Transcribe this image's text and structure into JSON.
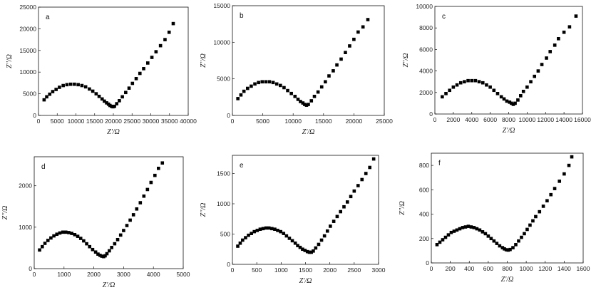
{
  "chart_data": [
    {
      "type": "scatter",
      "label": "a",
      "xlabel": "Z'/Ω",
      "ylabel": "Z''/Ω",
      "xlim": [
        0,
        40000
      ],
      "ylim": [
        0,
        25000
      ],
      "xticks": [
        0,
        5000,
        10000,
        15000,
        20000,
        25000,
        30000,
        35000,
        40000
      ],
      "yticks": [
        0,
        5000,
        10000,
        15000,
        20000,
        25000
      ],
      "series": [
        {
          "x": [
            1500,
            2200,
            3000,
            3800,
            4700,
            5600,
            6600,
            7600,
            8600,
            9600,
            10600,
            11600,
            12600,
            13600,
            14500,
            15400,
            16200,
            17000,
            17600,
            18200,
            18700,
            19100,
            19500,
            19900,
            20300,
            20900,
            21600,
            22400,
            23300,
            24200,
            25100,
            26100,
            27100,
            28100,
            29200,
            30300,
            31400,
            32600,
            33800,
            34900,
            36000
          ],
          "y": [
            3600,
            4300,
            4900,
            5500,
            6000,
            6500,
            6900,
            7100,
            7200,
            7200,
            7100,
            6900,
            6600,
            6100,
            5600,
            5000,
            4400,
            3800,
            3300,
            2900,
            2600,
            2300,
            2100,
            2000,
            2100,
            2700,
            3400,
            4300,
            5300,
            6300,
            7400,
            8500,
            9700,
            10800,
            12100,
            13400,
            14700,
            16100,
            17500,
            19200,
            21200
          ]
        }
      ]
    },
    {
      "type": "scatter",
      "label": "b",
      "xlabel": "Z'/Ω",
      "ylabel": "Z''/Ω",
      "xlim": [
        0,
        25000
      ],
      "ylim": [
        0,
        15000
      ],
      "xticks": [
        0,
        5000,
        10000,
        15000,
        20000,
        25000
      ],
      "yticks": [
        0,
        5000,
        10000,
        15000
      ],
      "series": [
        {
          "x": [
            900,
            1400,
            1900,
            2500,
            3100,
            3700,
            4300,
            4900,
            5500,
            6100,
            6700,
            7300,
            7900,
            8500,
            9100,
            9700,
            10300,
            10800,
            11200,
            11600,
            11900,
            12200,
            12500,
            13000,
            13500,
            14100,
            14700,
            15300,
            15900,
            16600,
            17200,
            17900,
            18600,
            19300,
            20000,
            20700,
            21500,
            22300
          ],
          "y": [
            2300,
            2800,
            3300,
            3700,
            4000,
            4300,
            4500,
            4600,
            4600,
            4600,
            4500,
            4300,
            4100,
            3800,
            3400,
            3000,
            2600,
            2200,
            1900,
            1700,
            1500,
            1400,
            1500,
            2000,
            2600,
            3200,
            3900,
            4600,
            5400,
            6100,
            6900,
            7700,
            8600,
            9500,
            10400,
            11400,
            12100,
            13100
          ]
        }
      ]
    },
    {
      "type": "scatter",
      "label": "c",
      "xlabel": "Z'/Ω",
      "ylabel": "Z''/Ω",
      "xlim": [
        0,
        16000
      ],
      "ylim": [
        0,
        10000
      ],
      "xticks": [
        0,
        2000,
        4000,
        6000,
        8000,
        10000,
        12000,
        14000,
        16000
      ],
      "yticks": [
        0,
        2000,
        4000,
        6000,
        8000,
        10000
      ],
      "series": [
        {
          "x": [
            800,
            1200,
            1600,
            2000,
            2400,
            2800,
            3200,
            3600,
            4000,
            4400,
            4800,
            5200,
            5600,
            6000,
            6400,
            6800,
            7200,
            7500,
            7800,
            8100,
            8300,
            8500,
            8700,
            9000,
            9300,
            9600,
            10000,
            10400,
            10800,
            11200,
            11600,
            12100,
            12500,
            13000,
            13400,
            14000,
            14600,
            15300
          ],
          "y": [
            1600,
            1900,
            2200,
            2500,
            2700,
            2900,
            3000,
            3100,
            3100,
            3100,
            3000,
            2900,
            2700,
            2500,
            2200,
            1900,
            1600,
            1400,
            1200,
            1100,
            1000,
            900,
            1000,
            1300,
            1700,
            2100,
            2500,
            3000,
            3500,
            4000,
            4600,
            5200,
            5800,
            6400,
            7000,
            7600,
            8100,
            9100
          ]
        }
      ]
    },
    {
      "type": "scatter",
      "label": "d",
      "xlabel": "Z'/Ω",
      "ylabel": "Z''/Ω",
      "xlim": [
        0,
        5000
      ],
      "ylim": [
        0,
        2700
      ],
      "xticks": [
        0,
        1000,
        2000,
        3000,
        4000,
        5000
      ],
      "yticks": [
        0,
        1000,
        2000
      ],
      "series": [
        {
          "x": [
            180,
            270,
            360,
            460,
            560,
            660,
            760,
            860,
            960,
            1060,
            1160,
            1260,
            1360,
            1460,
            1560,
            1660,
            1760,
            1860,
            1960,
            2060,
            2140,
            2210,
            2270,
            2330,
            2380,
            2440,
            2520,
            2600,
            2700,
            2800,
            2900,
            3000,
            3110,
            3220,
            3330,
            3440,
            3560,
            3680,
            3800,
            3920,
            4050,
            4170,
            4300
          ],
          "y": [
            450,
            530,
            610,
            680,
            740,
            790,
            830,
            860,
            880,
            880,
            870,
            850,
            820,
            780,
            730,
            670,
            600,
            530,
            460,
            400,
            350,
            320,
            300,
            290,
            310,
            360,
            430,
            510,
            600,
            700,
            810,
            920,
            1040,
            1170,
            1300,
            1440,
            1590,
            1750,
            1910,
            2080,
            2250,
            2420,
            2550
          ]
        }
      ]
    },
    {
      "type": "scatter",
      "label": "e",
      "xlabel": "Z'/Ω",
      "ylabel": "Z''/Ω",
      "xlim": [
        0,
        3000
      ],
      "ylim": [
        0,
        1800
      ],
      "xticks": [
        0,
        500,
        1000,
        1500,
        2000,
        2500,
        3000
      ],
      "yticks": [
        0,
        500,
        1000,
        1500
      ],
      "series": [
        {
          "x": [
            110,
            160,
            210,
            270,
            330,
            390,
            450,
            510,
            570,
            630,
            690,
            750,
            810,
            870,
            930,
            990,
            1050,
            1110,
            1170,
            1230,
            1290,
            1340,
            1390,
            1440,
            1490,
            1540,
            1580,
            1620,
            1660,
            1710,
            1770,
            1830,
            1890,
            1950,
            2010,
            2080,
            2150,
            2220,
            2290,
            2360,
            2430,
            2500,
            2580,
            2660,
            2740,
            2820,
            2900
          ],
          "y": [
            300,
            350,
            400,
            440,
            480,
            510,
            540,
            560,
            580,
            590,
            600,
            600,
            590,
            580,
            560,
            540,
            510,
            470,
            430,
            390,
            350,
            310,
            280,
            250,
            230,
            210,
            200,
            200,
            220,
            270,
            330,
            400,
            470,
            550,
            630,
            710,
            790,
            870,
            950,
            1030,
            1120,
            1210,
            1300,
            1400,
            1500,
            1600,
            1740
          ]
        }
      ]
    },
    {
      "type": "scatter",
      "label": "f",
      "xlabel": "Z'/Ω",
      "ylabel": "Z''/Ω",
      "xlim": [
        0,
        1600
      ],
      "ylim": [
        0,
        900
      ],
      "xticks": [
        0,
        200,
        400,
        600,
        800,
        1000,
        1200,
        1400,
        1600
      ],
      "yticks": [
        0,
        200,
        400,
        600,
        800
      ],
      "series": [
        {
          "x": [
            60,
            90,
            120,
            150,
            180,
            210,
            240,
            270,
            300,
            330,
            360,
            390,
            420,
            450,
            480,
            510,
            540,
            570,
            600,
            630,
            660,
            690,
            720,
            750,
            770,
            790,
            810,
            830,
            860,
            890,
            920,
            950,
            980,
            1010,
            1040,
            1070,
            1100,
            1140,
            1180,
            1220,
            1260,
            1300,
            1350,
            1400,
            1450,
            1480
          ],
          "y": [
            150,
            170,
            190,
            210,
            230,
            250,
            260,
            270,
            280,
            290,
            295,
            300,
            295,
            290,
            280,
            270,
            255,
            240,
            220,
            200,
            180,
            160,
            140,
            125,
            115,
            108,
            105,
            110,
            125,
            150,
            180,
            210,
            240,
            275,
            310,
            345,
            380,
            420,
            465,
            510,
            560,
            610,
            670,
            730,
            800,
            870
          ]
        }
      ]
    }
  ]
}
